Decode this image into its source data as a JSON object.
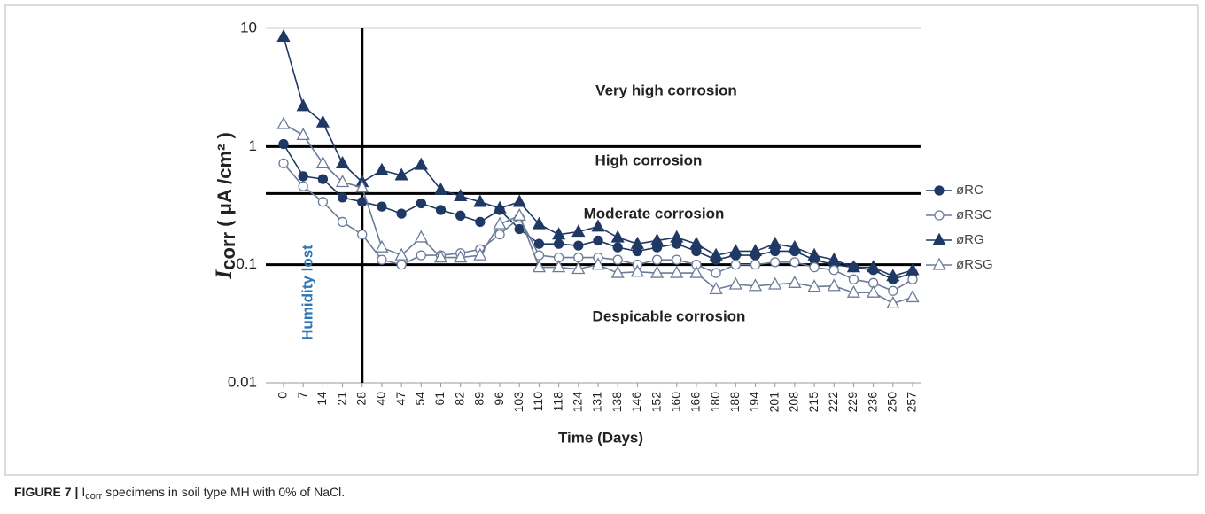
{
  "chart_data": {
    "type": "line",
    "ylabel": {
      "main": "I",
      "sub": "corr",
      "rest": "( μA /cm² )"
    },
    "xlabel": "Time (Days)",
    "categories": [
      "0",
      "7",
      "14",
      "21",
      "28",
      "40",
      "47",
      "54",
      "61",
      "82",
      "89",
      "96",
      "103",
      "110",
      "118",
      "124",
      "131",
      "138",
      "146",
      "152",
      "160",
      "166",
      "180",
      "188",
      "194",
      "201",
      "208",
      "215",
      "222",
      "229",
      "236",
      "250",
      "257"
    ],
    "series": [
      {
        "name": "øRC",
        "color": "#1f3864",
        "marker": "circle",
        "filled": true,
        "values": [
          1.05,
          0.56,
          0.53,
          0.37,
          0.34,
          0.31,
          0.27,
          0.33,
          0.29,
          0.26,
          0.23,
          0.29,
          0.2,
          0.15,
          0.15,
          0.145,
          0.16,
          0.14,
          0.13,
          0.14,
          0.15,
          0.13,
          0.11,
          0.12,
          0.12,
          0.13,
          0.13,
          0.11,
          0.1,
          0.095,
          0.09,
          0.075,
          0.085
        ]
      },
      {
        "name": "øRSC",
        "color": "#6b7b98",
        "marker": "circle",
        "filled": false,
        "values": [
          0.72,
          0.46,
          0.34,
          0.23,
          0.18,
          0.11,
          0.1,
          0.12,
          0.12,
          0.125,
          0.135,
          0.18,
          0.25,
          0.12,
          0.115,
          0.115,
          0.115,
          0.11,
          0.1,
          0.11,
          0.11,
          0.1,
          0.085,
          0.1,
          0.1,
          0.105,
          0.105,
          0.095,
          0.09,
          0.075,
          0.07,
          0.06,
          0.075
        ]
      },
      {
        "name": "øRG",
        "color": "#1f3864",
        "marker": "triangle",
        "filled": true,
        "values": [
          8.5,
          2.2,
          1.6,
          0.72,
          0.5,
          0.63,
          0.57,
          0.7,
          0.43,
          0.38,
          0.34,
          0.3,
          0.34,
          0.22,
          0.18,
          0.19,
          0.21,
          0.17,
          0.15,
          0.16,
          0.17,
          0.15,
          0.12,
          0.13,
          0.13,
          0.15,
          0.14,
          0.12,
          0.11,
          0.095,
          0.095,
          0.08,
          0.09
        ]
      },
      {
        "name": "øRSG",
        "color": "#6b7b98",
        "marker": "triangle",
        "filled": false,
        "values": [
          1.55,
          1.25,
          0.72,
          0.5,
          0.45,
          0.14,
          0.12,
          0.17,
          0.115,
          0.115,
          0.12,
          0.22,
          0.26,
          0.095,
          0.095,
          0.092,
          0.1,
          0.085,
          0.087,
          0.085,
          0.085,
          0.085,
          0.062,
          0.068,
          0.066,
          0.068,
          0.07,
          0.065,
          0.066,
          0.058,
          0.058,
          0.047,
          0.053
        ]
      }
    ],
    "ylim": [
      0.01,
      10
    ],
    "yticks": [
      10,
      1,
      0.1,
      0.01
    ],
    "log_y": true,
    "grid": true,
    "thresholds": [
      1,
      0.4,
      0.1
    ],
    "vline": "28",
    "zones": [
      "Very high corrosion",
      "High corrosion",
      "Moderate corrosion",
      "Despicable corrosion"
    ],
    "annotation": "Humidity lost",
    "legend": "right"
  },
  "caption": {
    "label": "FIGURE 7 |",
    "main": "I",
    "sub": "corr",
    "rest": " specimens in soil type MH with 0% of NaCl."
  }
}
